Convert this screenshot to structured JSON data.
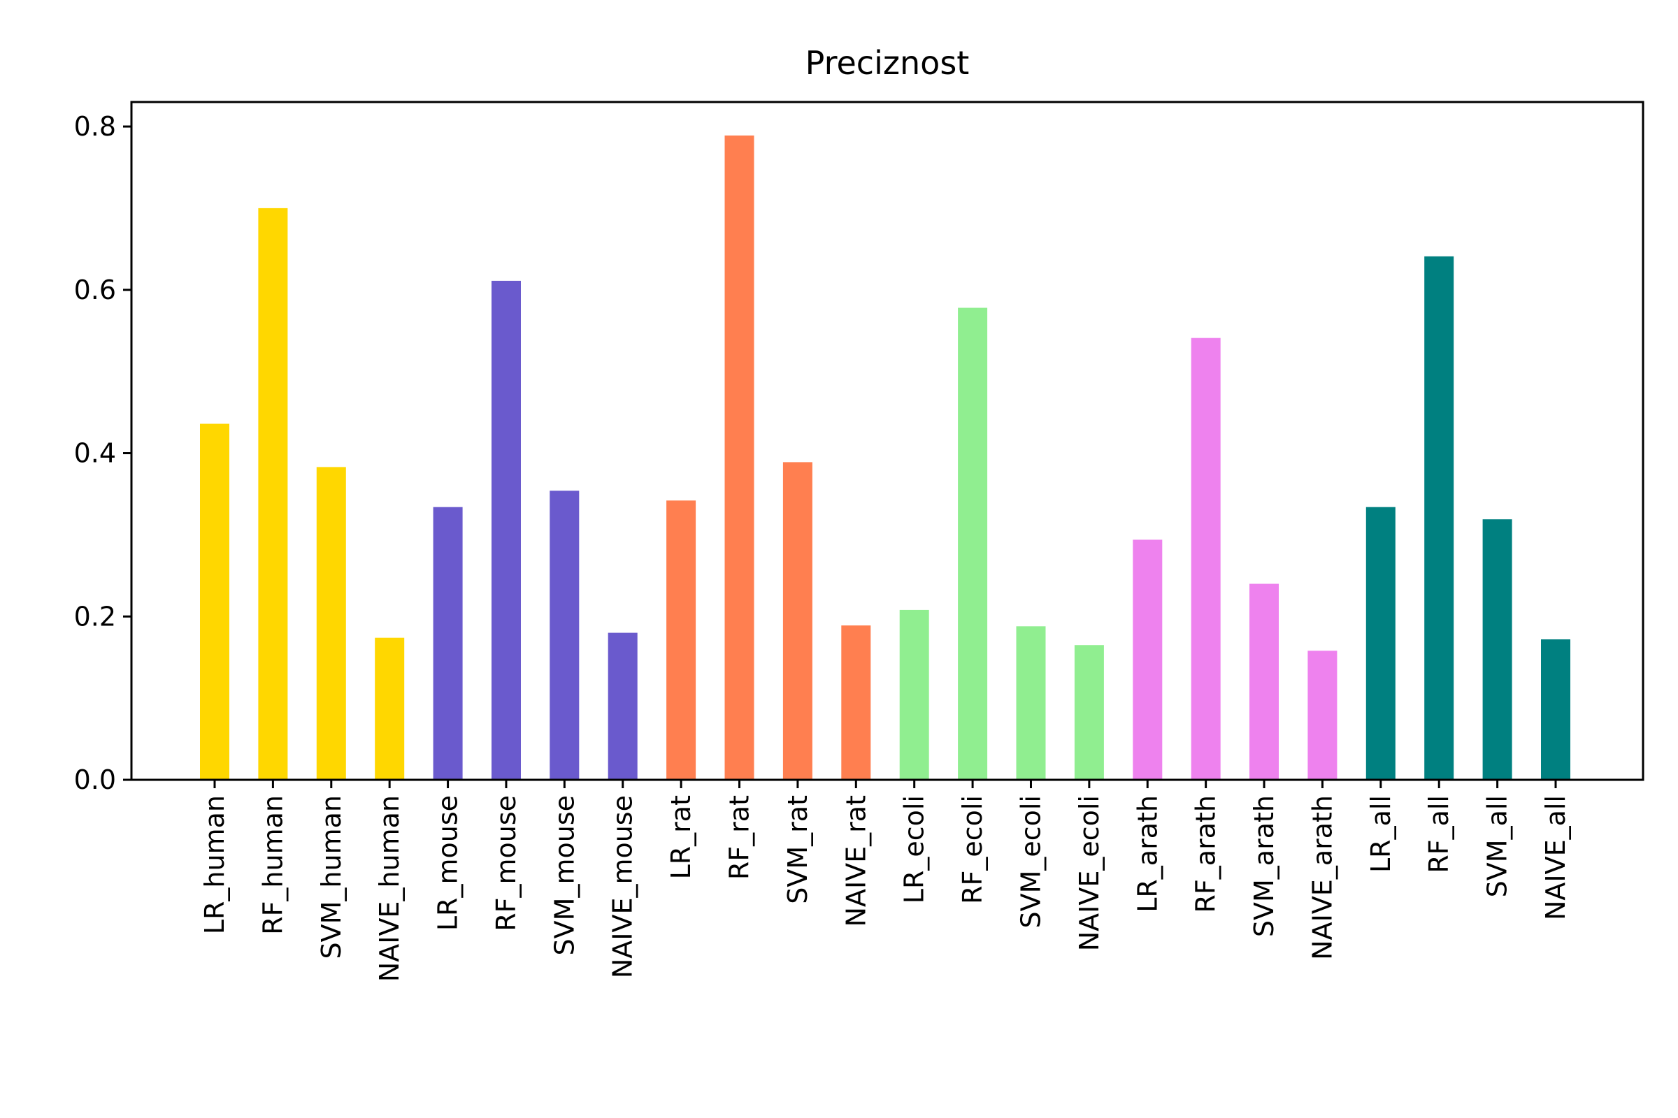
{
  "chart_data": {
    "type": "bar",
    "title": "Preciznost",
    "xlabel": "",
    "ylabel": "",
    "ylim": [
      0,
      0.83
    ],
    "yticks": [
      "0.0",
      "0.2",
      "0.4",
      "0.6",
      "0.8"
    ],
    "grid": false,
    "categories": [
      "LR_human",
      "RF_human",
      "SVM_human",
      "NAIVE_human",
      "LR_mouse",
      "RF_mouse",
      "SVM_mouse",
      "NAIVE_mouse",
      "LR_rat",
      "RF_rat",
      "SVM_rat",
      "NAIVE_rat",
      "LR_ecoli",
      "RF_ecoli",
      "SVM_ecoli",
      "NAIVE_ecoli",
      "LR_arath",
      "RF_arath",
      "SVM_arath",
      "NAIVE_arath",
      "LR_all",
      "RF_all",
      "SVM_all",
      "NAIVE_all"
    ],
    "values": [
      0.436,
      0.7,
      0.383,
      0.174,
      0.334,
      0.611,
      0.354,
      0.18,
      0.342,
      0.789,
      0.389,
      0.189,
      0.208,
      0.578,
      0.188,
      0.165,
      0.294,
      0.541,
      0.24,
      0.158,
      0.334,
      0.641,
      0.319,
      0.172
    ],
    "colors": [
      "#FFD700",
      "#FFD700",
      "#FFD700",
      "#FFD700",
      "#6A5ACD",
      "#6A5ACD",
      "#6A5ACD",
      "#6A5ACD",
      "#FF7F50",
      "#FF7F50",
      "#FF7F50",
      "#FF7F50",
      "#90EE90",
      "#90EE90",
      "#90EE90",
      "#90EE90",
      "#EE82EE",
      "#EE82EE",
      "#EE82EE",
      "#EE82EE",
      "#008080",
      "#008080",
      "#008080",
      "#008080"
    ]
  }
}
